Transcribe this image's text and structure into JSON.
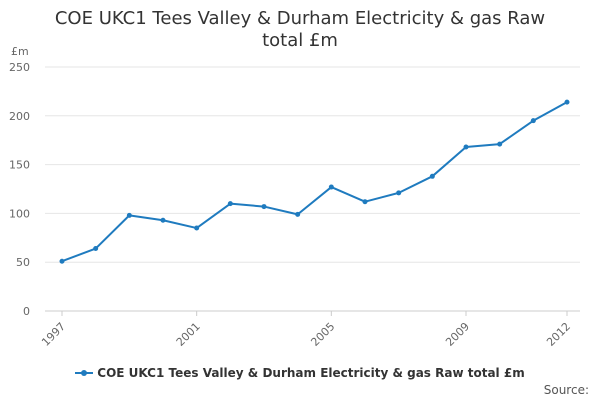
{
  "title_lines": [
    "COE UKC1 Tees Valley & Durham Electricity & gas Raw",
    "total £m"
  ],
  "unit_label": "£m",
  "source_label": "Source:",
  "legend_label": "COE UKC1 Tees Valley & Durham Electricity & gas Raw total £m",
  "colors": {
    "series": "#1f7bbf",
    "grid": "#e6e6e6",
    "axis": "#cccccc"
  },
  "chart_data": {
    "type": "line",
    "title": "COE UKC1 Tees Valley & Durham Electricity & gas Raw total £m",
    "xlabel": "",
    "ylabel": "£m",
    "x": [
      1997,
      1998,
      1999,
      2000,
      2001,
      2002,
      2003,
      2004,
      2005,
      2006,
      2007,
      2008,
      2009,
      2010,
      2011,
      2012
    ],
    "x_tick_labels": [
      "1997",
      "2001",
      "2005",
      "2009",
      "2012"
    ],
    "y_ticks": [
      0,
      50,
      100,
      150,
      200,
      250
    ],
    "ylim": [
      0,
      250
    ],
    "xlim": [
      1997,
      2012
    ],
    "grid": true,
    "legend_position": "bottom",
    "series": [
      {
        "name": "COE UKC1 Tees Valley & Durham Electricity & gas Raw total £m",
        "values": [
          51,
          64,
          98,
          93,
          85,
          110,
          107,
          99,
          127,
          112,
          121,
          138,
          168,
          171,
          195,
          214
        ]
      }
    ]
  }
}
